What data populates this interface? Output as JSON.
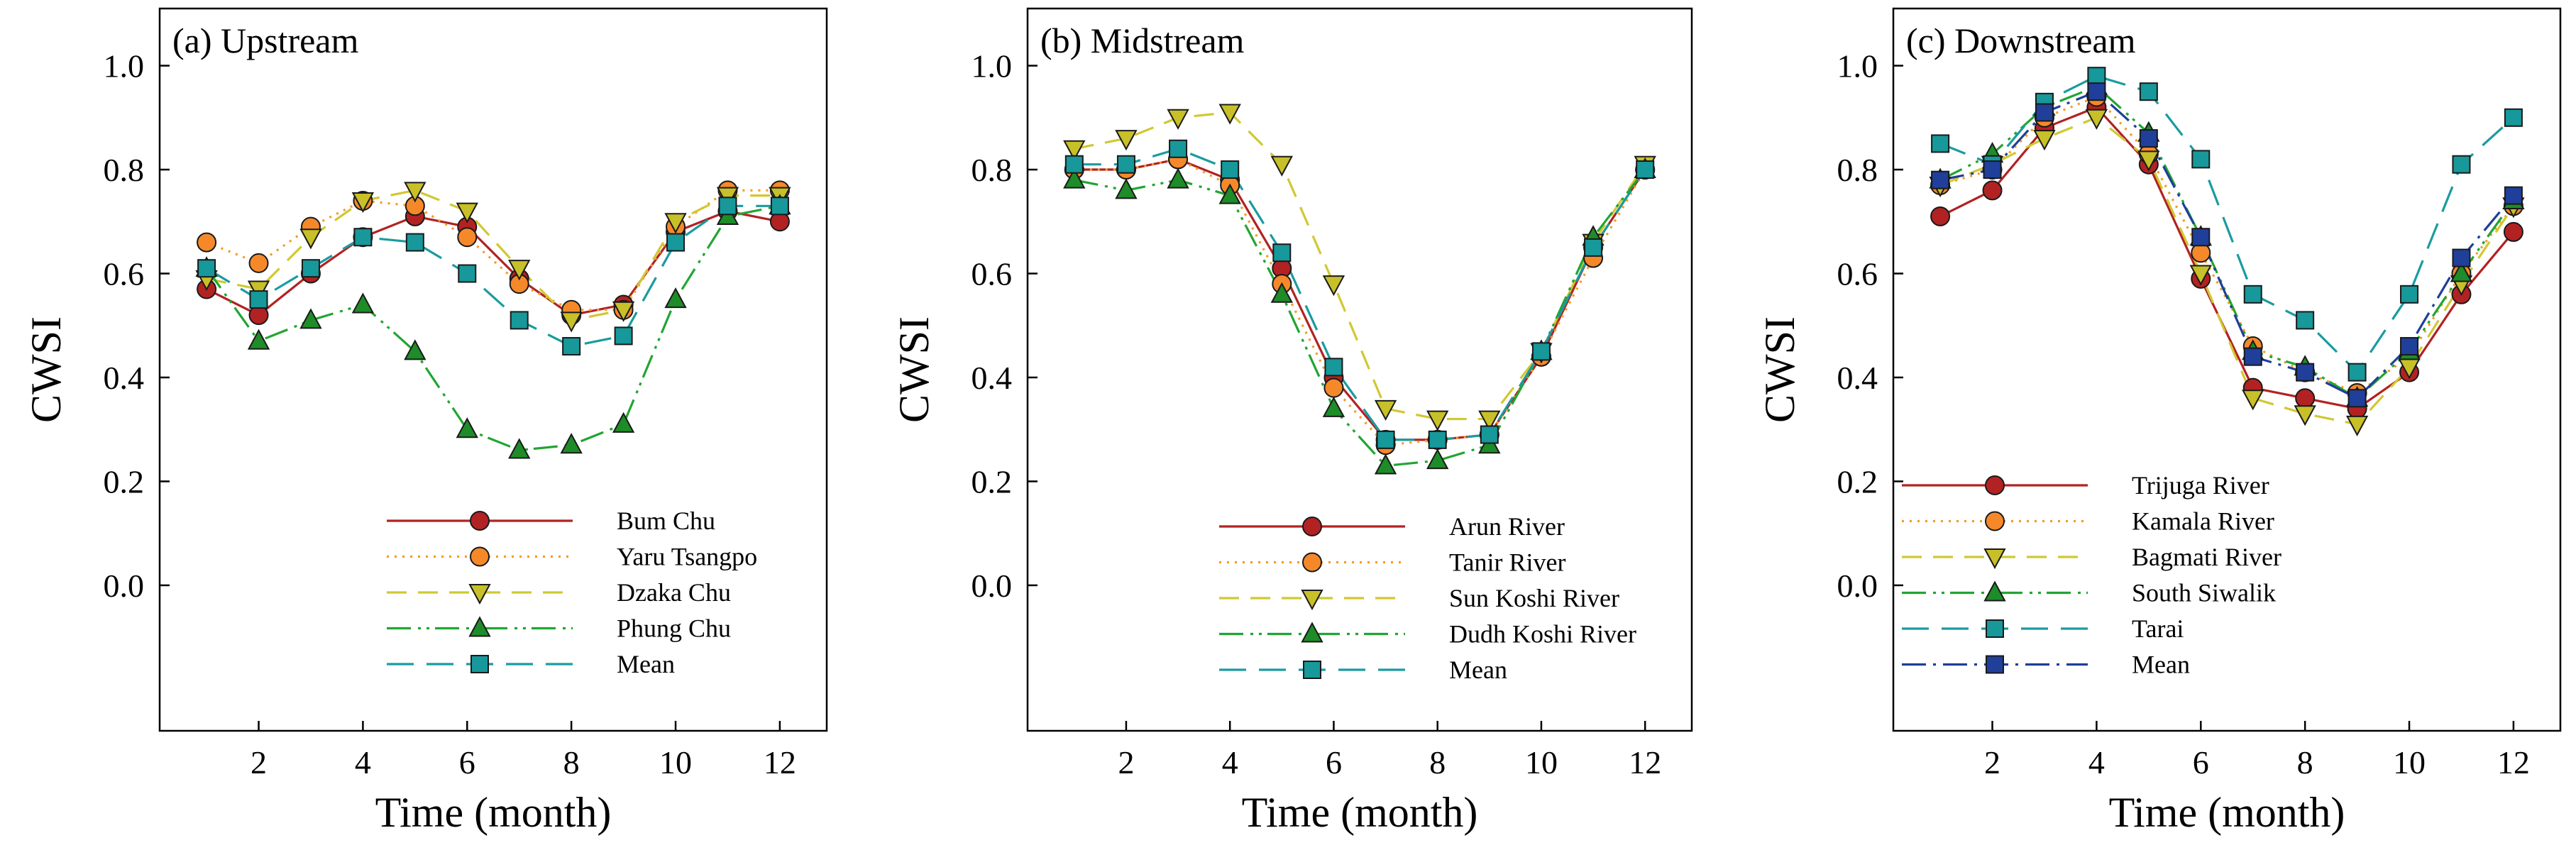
{
  "chart_data": [
    {
      "type": "line",
      "title": "(a) Upstream",
      "xlabel": "Time (month)",
      "ylabel": "CWSI",
      "x": [
        1,
        2,
        3,
        4,
        5,
        6,
        7,
        8,
        9,
        10,
        11,
        12
      ],
      "xticks": [
        2,
        4,
        6,
        8,
        10,
        12
      ],
      "yticks": [
        0.0,
        0.2,
        0.4,
        0.6,
        0.8,
        1.0
      ],
      "ytick_labels": [
        "0.0",
        "0.2",
        "0.4",
        "0.6",
        "0.8",
        "1.0"
      ],
      "xlim": [
        0.1,
        12.9
      ],
      "ylim": [
        -0.28,
        1.11
      ],
      "legend_position": "lower-center",
      "series": [
        {
          "name": "Bum Chu",
          "color": "#b22222",
          "fill": "#b22222",
          "dash": "",
          "marker": "circle",
          "values": [
            0.57,
            0.52,
            0.6,
            0.67,
            0.71,
            0.69,
            0.59,
            0.52,
            0.54,
            0.68,
            0.72,
            0.7
          ]
        },
        {
          "name": "Yaru Tsangpo",
          "color": "#f59b24",
          "fill": "#f5892a",
          "dash": "3,8",
          "marker": "circle",
          "values": [
            0.66,
            0.62,
            0.69,
            0.74,
            0.73,
            0.67,
            0.58,
            0.53,
            0.53,
            0.69,
            0.76,
            0.76
          ]
        },
        {
          "name": "Dzaka Chu",
          "color": "#d1c832",
          "fill": "#c8c028",
          "dash": "28,16",
          "marker": "triangle-down",
          "values": [
            0.59,
            0.57,
            0.67,
            0.74,
            0.76,
            0.72,
            0.61,
            0.51,
            0.53,
            0.7,
            0.75,
            0.75
          ]
        },
        {
          "name": "Phung Chu",
          "color": "#22a532",
          "fill": "#1e8c28",
          "dash": "34,10,4,8,4,8",
          "marker": "triangle-up",
          "values": [
            0.61,
            0.47,
            0.51,
            0.54,
            0.45,
            0.3,
            0.26,
            0.27,
            0.31,
            0.55,
            0.71,
            0.73
          ]
        },
        {
          "name": "Mean",
          "color": "#1a9ba0",
          "fill": "#17989a",
          "dash": "38,18",
          "marker": "square",
          "values": [
            0.61,
            0.55,
            0.61,
            0.67,
            0.66,
            0.6,
            0.51,
            0.46,
            0.48,
            0.66,
            0.73,
            0.73
          ]
        }
      ]
    },
    {
      "type": "line",
      "title": "(b) Midstream",
      "xlabel": "Time (month)",
      "ylabel": "CWSI",
      "x": [
        1,
        2,
        3,
        4,
        5,
        6,
        7,
        8,
        9,
        10,
        11,
        12
      ],
      "xticks": [
        2,
        4,
        6,
        8,
        10,
        12
      ],
      "yticks": [
        0.0,
        0.2,
        0.4,
        0.6,
        0.8,
        1.0
      ],
      "ytick_labels": [
        "0.0",
        "0.2",
        "0.4",
        "0.6",
        "0.8",
        "1.0"
      ],
      "xlim": [
        0.1,
        12.9
      ],
      "ylim": [
        -0.28,
        1.11
      ],
      "legend_position": "lower-center",
      "series": [
        {
          "name": "Arun River",
          "color": "#b22222",
          "fill": "#b22222",
          "dash": "",
          "marker": "circle",
          "values": [
            0.8,
            0.8,
            0.82,
            0.78,
            0.61,
            0.4,
            0.28,
            0.28,
            0.29,
            0.44,
            0.65,
            0.8
          ]
        },
        {
          "name": "Tanir River",
          "color": "#f59b24",
          "fill": "#f5892a",
          "dash": "3,8",
          "marker": "circle",
          "values": [
            0.8,
            0.8,
            0.82,
            0.77,
            0.58,
            0.38,
            0.27,
            0.28,
            0.29,
            0.44,
            0.63,
            0.8
          ]
        },
        {
          "name": "Sun Koshi River",
          "color": "#d1c832",
          "fill": "#c8c028",
          "dash": "28,16",
          "marker": "triangle-down",
          "values": [
            0.84,
            0.86,
            0.9,
            0.91,
            0.81,
            0.58,
            0.34,
            0.32,
            0.32,
            0.45,
            0.66,
            0.81
          ]
        },
        {
          "name": "Dudh Koshi River",
          "color": "#22a532",
          "fill": "#1e8c28",
          "dash": "34,10,4,8,4,8",
          "marker": "triangle-up",
          "values": [
            0.78,
            0.76,
            0.78,
            0.75,
            0.56,
            0.34,
            0.23,
            0.24,
            0.27,
            0.45,
            0.67,
            0.8
          ]
        },
        {
          "name": "Mean",
          "color": "#1a9ba0",
          "fill": "#17989a",
          "dash": "38,18",
          "marker": "square",
          "values": [
            0.81,
            0.81,
            0.84,
            0.8,
            0.64,
            0.42,
            0.28,
            0.28,
            0.29,
            0.45,
            0.65,
            0.8
          ]
        }
      ]
    },
    {
      "type": "line",
      "title": "(c) Downstream",
      "xlabel": "Time (month)",
      "ylabel": "CWSI",
      "x": [
        1,
        2,
        3,
        4,
        5,
        6,
        7,
        8,
        9,
        10,
        11,
        12
      ],
      "xticks": [
        2,
        4,
        6,
        8,
        10,
        12
      ],
      "yticks": [
        0.0,
        0.2,
        0.4,
        0.6,
        0.8,
        1.0
      ],
      "ytick_labels": [
        "0.0",
        "0.2",
        "0.4",
        "0.6",
        "0.8",
        "1.0"
      ],
      "xlim": [
        0.1,
        12.9
      ],
      "ylim": [
        -0.28,
        1.11
      ],
      "legend_position": "lower-left",
      "series": [
        {
          "name": "Trijuga River",
          "color": "#b22222",
          "fill": "#b22222",
          "dash": "",
          "marker": "circle",
          "values": [
            0.71,
            0.76,
            0.88,
            0.92,
            0.81,
            0.59,
            0.38,
            0.36,
            0.34,
            0.41,
            0.56,
            0.68
          ]
        },
        {
          "name": "Kamala River",
          "color": "#f59b24",
          "fill": "#f5892a",
          "dash": "3,8",
          "marker": "circle",
          "values": [
            0.77,
            0.8,
            0.9,
            0.94,
            0.83,
            0.64,
            0.46,
            0.41,
            0.37,
            0.44,
            0.6,
            0.73
          ]
        },
        {
          "name": "Bagmati River",
          "color": "#d1c832",
          "fill": "#c8c028",
          "dash": "28,16",
          "marker": "triangle-down",
          "values": [
            0.77,
            0.81,
            0.86,
            0.9,
            0.82,
            0.6,
            0.36,
            0.33,
            0.31,
            0.42,
            0.58,
            0.73
          ]
        },
        {
          "name": "South Siwalik",
          "color": "#22a532",
          "fill": "#1e8c28",
          "dash": "34,10,4,8,4,8",
          "marker": "triangle-up",
          "values": [
            0.78,
            0.83,
            0.92,
            0.96,
            0.87,
            0.67,
            0.45,
            0.42,
            0.36,
            0.45,
            0.6,
            0.74
          ]
        },
        {
          "name": "Tarai",
          "color": "#1a9ba0",
          "fill": "#17989a",
          "dash": "38,18",
          "marker": "square",
          "values": [
            0.85,
            0.81,
            0.93,
            0.98,
            0.95,
            0.82,
            0.56,
            0.51,
            0.41,
            0.56,
            0.81,
            0.9
          ]
        },
        {
          "name": "Mean",
          "color": "#1f3f9a",
          "fill": "#1f3f9a",
          "dash": "34,10,4,10",
          "marker": "square",
          "values": [
            0.78,
            0.8,
            0.91,
            0.95,
            0.86,
            0.67,
            0.44,
            0.41,
            0.36,
            0.46,
            0.63,
            0.75
          ]
        }
      ]
    }
  ]
}
